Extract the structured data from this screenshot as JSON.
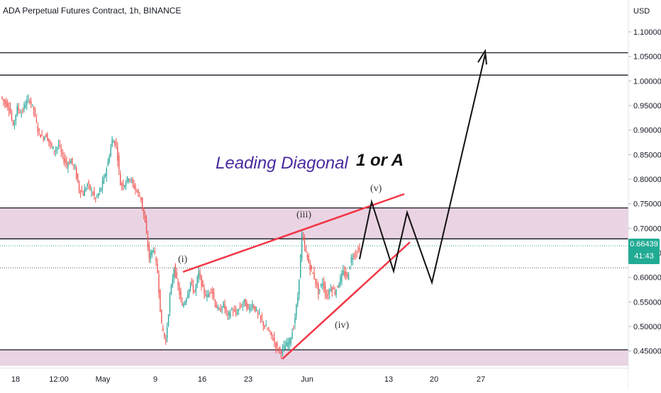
{
  "header": {
    "title": "ADA Perpetual Futures Contract, 1h, BINANCE"
  },
  "price_badge": {
    "price": "0.66439",
    "countdown": "41:43",
    "color": "#22ab94"
  },
  "chart_data": {
    "type": "candlestick",
    "currency_label": "USD",
    "y_ticks": [
      "1.10000",
      "1.05000",
      "1.00000",
      "0.95000",
      "0.90000",
      "0.85000",
      "0.80000",
      "0.75000",
      "0.70000",
      "0.65000",
      "0.60000",
      "0.55000",
      "0.50000",
      "0.45000"
    ],
    "y_tick_values": [
      1.1,
      1.05,
      1.0,
      0.95,
      0.9,
      0.85,
      0.8,
      0.75,
      0.7,
      0.65,
      0.6,
      0.55,
      0.5,
      0.45
    ],
    "x_ticks": [
      "18",
      "12:00",
      "May",
      "9",
      "16",
      "23",
      "Jun",
      "13",
      "20",
      "27"
    ],
    "ylim": [
      0.415,
      1.165
    ],
    "grid": false,
    "up_color": "#26a69a",
    "down_color": "#ef5350",
    "zones": [
      {
        "from": 0.6785,
        "to": 0.7415,
        "color": "#e8cfe0"
      },
      {
        "from": 0.42,
        "to": 0.4525,
        "color": "#e8cfe0"
      }
    ],
    "horizontal_lines": [
      1.0575,
      1.012,
      0.7415,
      0.6785,
      0.4525
    ],
    "dotted_lines": [
      0.6195
    ],
    "annotations": [
      {
        "text": "Leading Diagonal",
        "color": "#4a2a9e"
      },
      {
        "text": "1 or A",
        "color": "#111111"
      },
      {
        "text": "(i)",
        "color": "#333333"
      },
      {
        "text": "(iii)",
        "color": "#333333"
      },
      {
        "text": "(v)",
        "color": "#333333"
      },
      {
        "text": "(iv)",
        "color": "#333333"
      }
    ],
    "price_path": [
      [
        0.968,
        0.955
      ],
      [
        0.958,
        0.945
      ],
      [
        0.95,
        0.905
      ],
      [
        0.91,
        0.945
      ],
      [
        0.945,
        0.935
      ],
      [
        0.935,
        0.955
      ],
      [
        0.955,
        0.962
      ],
      [
        0.962,
        0.94
      ],
      [
        0.94,
        0.9
      ],
      [
        0.9,
        0.885
      ],
      [
        0.885,
        0.89
      ],
      [
        0.89,
        0.87
      ],
      [
        0.87,
        0.858
      ],
      [
        0.858,
        0.87
      ],
      [
        0.87,
        0.845
      ],
      [
        0.845,
        0.83
      ],
      [
        0.83,
        0.838
      ],
      [
        0.838,
        0.82
      ],
      [
        0.82,
        0.78
      ],
      [
        0.78,
        0.77
      ],
      [
        0.77,
        0.79
      ],
      [
        0.79,
        0.775
      ],
      [
        0.775,
        0.76
      ],
      [
        0.76,
        0.775
      ],
      [
        0.775,
        0.8
      ],
      [
        0.8,
        0.835
      ],
      [
        0.835,
        0.88
      ],
      [
        0.88,
        0.87
      ],
      [
        0.87,
        0.79
      ],
      [
        0.79,
        0.79
      ],
      [
        0.79,
        0.805
      ],
      [
        0.805,
        0.79
      ],
      [
        0.79,
        0.775
      ],
      [
        0.775,
        0.76
      ],
      [
        0.76,
        0.71
      ],
      [
        0.71,
        0.64
      ],
      [
        0.64,
        0.66
      ],
      [
        0.66,
        0.61
      ],
      [
        0.61,
        0.5
      ],
      [
        0.5,
        0.47
      ],
      [
        0.47,
        0.56
      ],
      [
        0.56,
        0.62
      ],
      [
        0.62,
        0.58
      ],
      [
        0.58,
        0.54
      ],
      [
        0.54,
        0.56
      ],
      [
        0.56,
        0.59
      ],
      [
        0.59,
        0.57
      ],
      [
        0.57,
        0.61
      ],
      [
        0.61,
        0.575
      ],
      [
        0.575,
        0.56
      ],
      [
        0.56,
        0.58
      ],
      [
        0.58,
        0.545
      ],
      [
        0.545,
        0.53
      ],
      [
        0.53,
        0.545
      ],
      [
        0.545,
        0.52
      ],
      [
        0.52,
        0.535
      ],
      [
        0.535,
        0.525
      ],
      [
        0.525,
        0.54
      ],
      [
        0.54,
        0.55
      ],
      [
        0.55,
        0.535
      ],
      [
        0.535,
        0.545
      ],
      [
        0.545,
        0.53
      ],
      [
        0.53,
        0.515
      ],
      [
        0.515,
        0.5
      ],
      [
        0.5,
        0.49
      ],
      [
        0.49,
        0.475
      ],
      [
        0.475,
        0.455
      ],
      [
        0.455,
        0.45
      ],
      [
        0.45,
        0.46
      ],
      [
        0.46,
        0.47
      ],
      [
        0.47,
        0.5
      ],
      [
        0.5,
        0.56
      ],
      [
        0.56,
        0.685
      ],
      [
        0.685,
        0.65
      ],
      [
        0.65,
        0.62
      ],
      [
        0.62,
        0.6
      ],
      [
        0.6,
        0.57
      ],
      [
        0.57,
        0.59
      ],
      [
        0.59,
        0.56
      ],
      [
        0.56,
        0.58
      ],
      [
        0.58,
        0.57
      ],
      [
        0.57,
        0.59
      ],
      [
        0.59,
        0.61
      ],
      [
        0.61,
        0.6
      ],
      [
        0.6,
        0.64
      ],
      [
        0.64,
        0.65
      ],
      [
        0.65,
        0.66
      ]
    ]
  }
}
